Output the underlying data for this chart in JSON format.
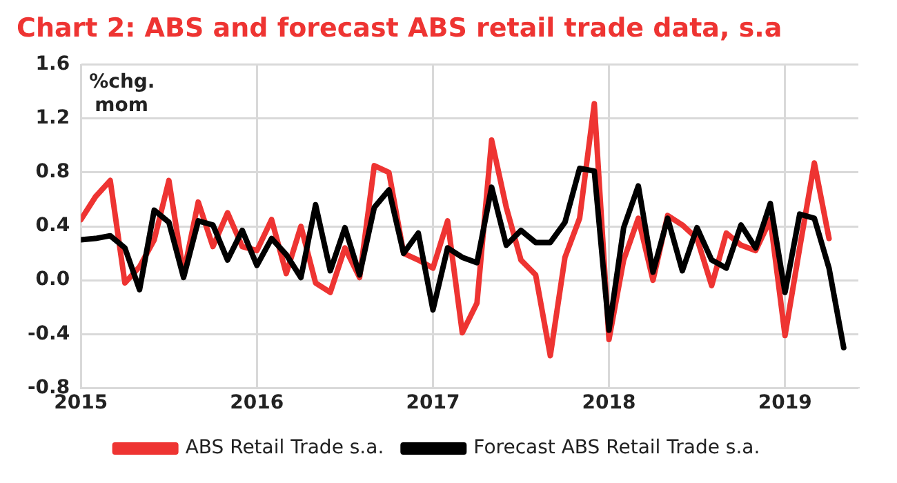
{
  "chart_data": {
    "type": "line",
    "title": "Chart 2: ABS and forecast ABS retail trade data, s.a",
    "ylabel": "%chg. mom",
    "x": [
      "2015-01",
      "2015-02",
      "2015-03",
      "2015-04",
      "2015-05",
      "2015-06",
      "2015-07",
      "2015-08",
      "2015-09",
      "2015-10",
      "2015-11",
      "2015-12",
      "2016-01",
      "2016-02",
      "2016-03",
      "2016-04",
      "2016-05",
      "2016-06",
      "2016-07",
      "2016-08",
      "2016-09",
      "2016-10",
      "2016-11",
      "2016-12",
      "2017-01",
      "2017-02",
      "2017-03",
      "2017-04",
      "2017-05",
      "2017-06",
      "2017-07",
      "2017-08",
      "2017-09",
      "2017-10",
      "2017-11",
      "2017-12",
      "2018-01",
      "2018-02",
      "2018-03",
      "2018-04",
      "2018-05",
      "2018-06",
      "2018-07",
      "2018-08",
      "2018-09",
      "2018-10",
      "2018-11",
      "2018-12",
      "2019-01",
      "2019-02",
      "2019-03",
      "2019-04",
      "2019-05"
    ],
    "series": [
      {
        "name": "ABS Retail Trade s.a.",
        "color": "#ee3432",
        "values": [
          0.45,
          0.62,
          0.74,
          -0.02,
          0.1,
          0.3,
          0.74,
          0.05,
          0.58,
          0.25,
          0.5,
          0.25,
          0.22,
          0.45,
          0.05,
          0.4,
          -0.02,
          -0.09,
          0.24,
          0.02,
          0.85,
          0.8,
          0.2,
          0.15,
          0.09,
          0.44,
          -0.39,
          -0.17,
          1.04,
          0.54,
          0.15,
          0.04,
          -0.56,
          0.17,
          0.46,
          1.31,
          -0.44,
          0.15,
          0.46,
          0.0,
          0.48,
          0.41,
          0.31,
          -0.04,
          0.35,
          0.26,
          0.22,
          0.45,
          -0.41,
          0.24,
          0.87,
          0.31,
          null
        ]
      },
      {
        "name": "Forecast ABS Retail Trade s.a.",
        "color": "#000000",
        "values": [
          0.3,
          0.31,
          0.33,
          0.24,
          -0.07,
          0.52,
          0.43,
          0.02,
          0.44,
          0.41,
          0.15,
          0.37,
          0.11,
          0.31,
          0.19,
          0.02,
          0.56,
          0.07,
          0.39,
          0.04,
          0.54,
          0.67,
          0.2,
          0.35,
          -0.22,
          0.24,
          0.17,
          0.13,
          0.69,
          0.26,
          0.37,
          0.28,
          0.28,
          0.43,
          0.83,
          0.81,
          -0.37,
          0.39,
          0.7,
          0.06,
          0.46,
          0.07,
          0.39,
          0.15,
          0.09,
          0.41,
          0.24,
          0.57,
          -0.09,
          0.49,
          0.46,
          0.09,
          -0.5
        ]
      }
    ],
    "xlim": [
      "2015-01",
      "2019-06"
    ],
    "xticks": [
      "2015",
      "2016",
      "2017",
      "2018",
      "2019"
    ],
    "ylim": [
      -0.8,
      1.6
    ],
    "yticks": [
      -0.8,
      -0.4,
      {
        "value": 0,
        "label": "0.0"
      },
      0.4,
      0.8,
      1.2,
      1.6
    ],
    "grid": true,
    "legend": "bottom",
    "marker": "none",
    "line_style": "solid"
  }
}
